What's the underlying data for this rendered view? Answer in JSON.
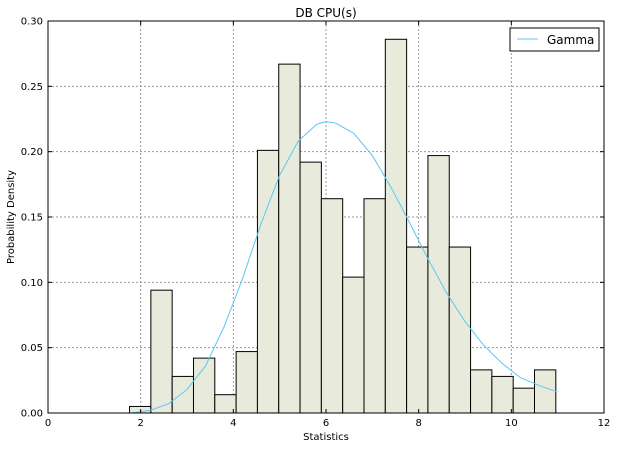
{
  "chart_data": {
    "type": "bar",
    "title": "DB CPU(s)",
    "xlabel": "Statistics",
    "ylabel": "Probability Density",
    "xlim": [
      0,
      12
    ],
    "ylim": [
      0,
      0.3
    ],
    "x_ticks": [
      "0",
      "2",
      "4",
      "6",
      "8",
      "10",
      "12"
    ],
    "y_ticks": [
      "0.00",
      "0.05",
      "0.10",
      "0.15",
      "0.20",
      "0.25",
      "0.30"
    ],
    "grid": true,
    "legend_position": "top-right",
    "histogram": {
      "bin_edges": [
        1.76,
        2.22,
        2.68,
        3.14,
        3.6,
        4.06,
        4.52,
        4.98,
        5.44,
        5.9,
        6.36,
        6.82,
        7.28,
        7.74,
        8.2,
        8.66,
        9.12,
        9.58,
        10.04,
        10.5,
        10.96
      ],
      "values": [
        0.005,
        0.094,
        0.028,
        0.042,
        0.014,
        0.047,
        0.201,
        0.267,
        0.192,
        0.164,
        0.104,
        0.164,
        0.286,
        0.127,
        0.197,
        0.127,
        0.033,
        0.028,
        0.019,
        0.033
      ],
      "fill": "#e8ebdc",
      "edge": "#000000"
    },
    "series": [
      {
        "name": "Gamma",
        "color": "#5bc8f0",
        "x": [
          1.8,
          2.2,
          2.6,
          3.0,
          3.4,
          3.8,
          4.2,
          4.6,
          5.0,
          5.4,
          5.8,
          6.0,
          6.2,
          6.6,
          7.0,
          7.4,
          7.8,
          8.2,
          8.6,
          9.0,
          9.4,
          9.8,
          10.2,
          10.6,
          11.0
        ],
        "y": [
          0.0,
          0.002,
          0.007,
          0.018,
          0.036,
          0.066,
          0.103,
          0.145,
          0.182,
          0.208,
          0.221,
          0.223,
          0.222,
          0.214,
          0.197,
          0.173,
          0.146,
          0.118,
          0.092,
          0.07,
          0.052,
          0.038,
          0.027,
          0.021,
          0.016
        ]
      }
    ]
  }
}
